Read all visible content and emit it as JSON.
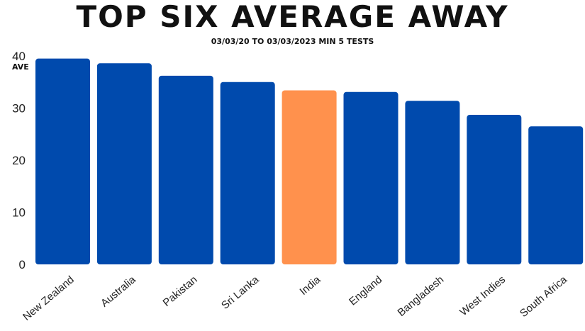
{
  "header": {
    "title": "TOP SIX AVERAGE AWAY",
    "subtitle": "03/03/20 TO 03/03/2023 MIN 5 TESTS"
  },
  "colors": {
    "bar": "#004aad",
    "highlight": "#ff914d"
  },
  "chart_data": {
    "type": "bar",
    "title": "TOP SIX AVERAGE AWAY",
    "subtitle": "03/03/20 TO 03/03/2023 MIN 5 TESTS",
    "ylabel": "AVE",
    "xlabel": "",
    "ylim": [
      0,
      40
    ],
    "yticks": [
      0,
      10,
      20,
      30,
      40
    ],
    "grid": false,
    "categories": [
      "New Zealand",
      "Australia",
      "Pakistan",
      "Sri Lanka",
      "India",
      "England",
      "Bangladesh",
      "West Indies",
      "South Africa"
    ],
    "values": [
      39.5,
      38.6,
      36.2,
      35.0,
      33.4,
      33.1,
      31.4,
      28.7,
      26.5
    ],
    "highlight": "India"
  }
}
